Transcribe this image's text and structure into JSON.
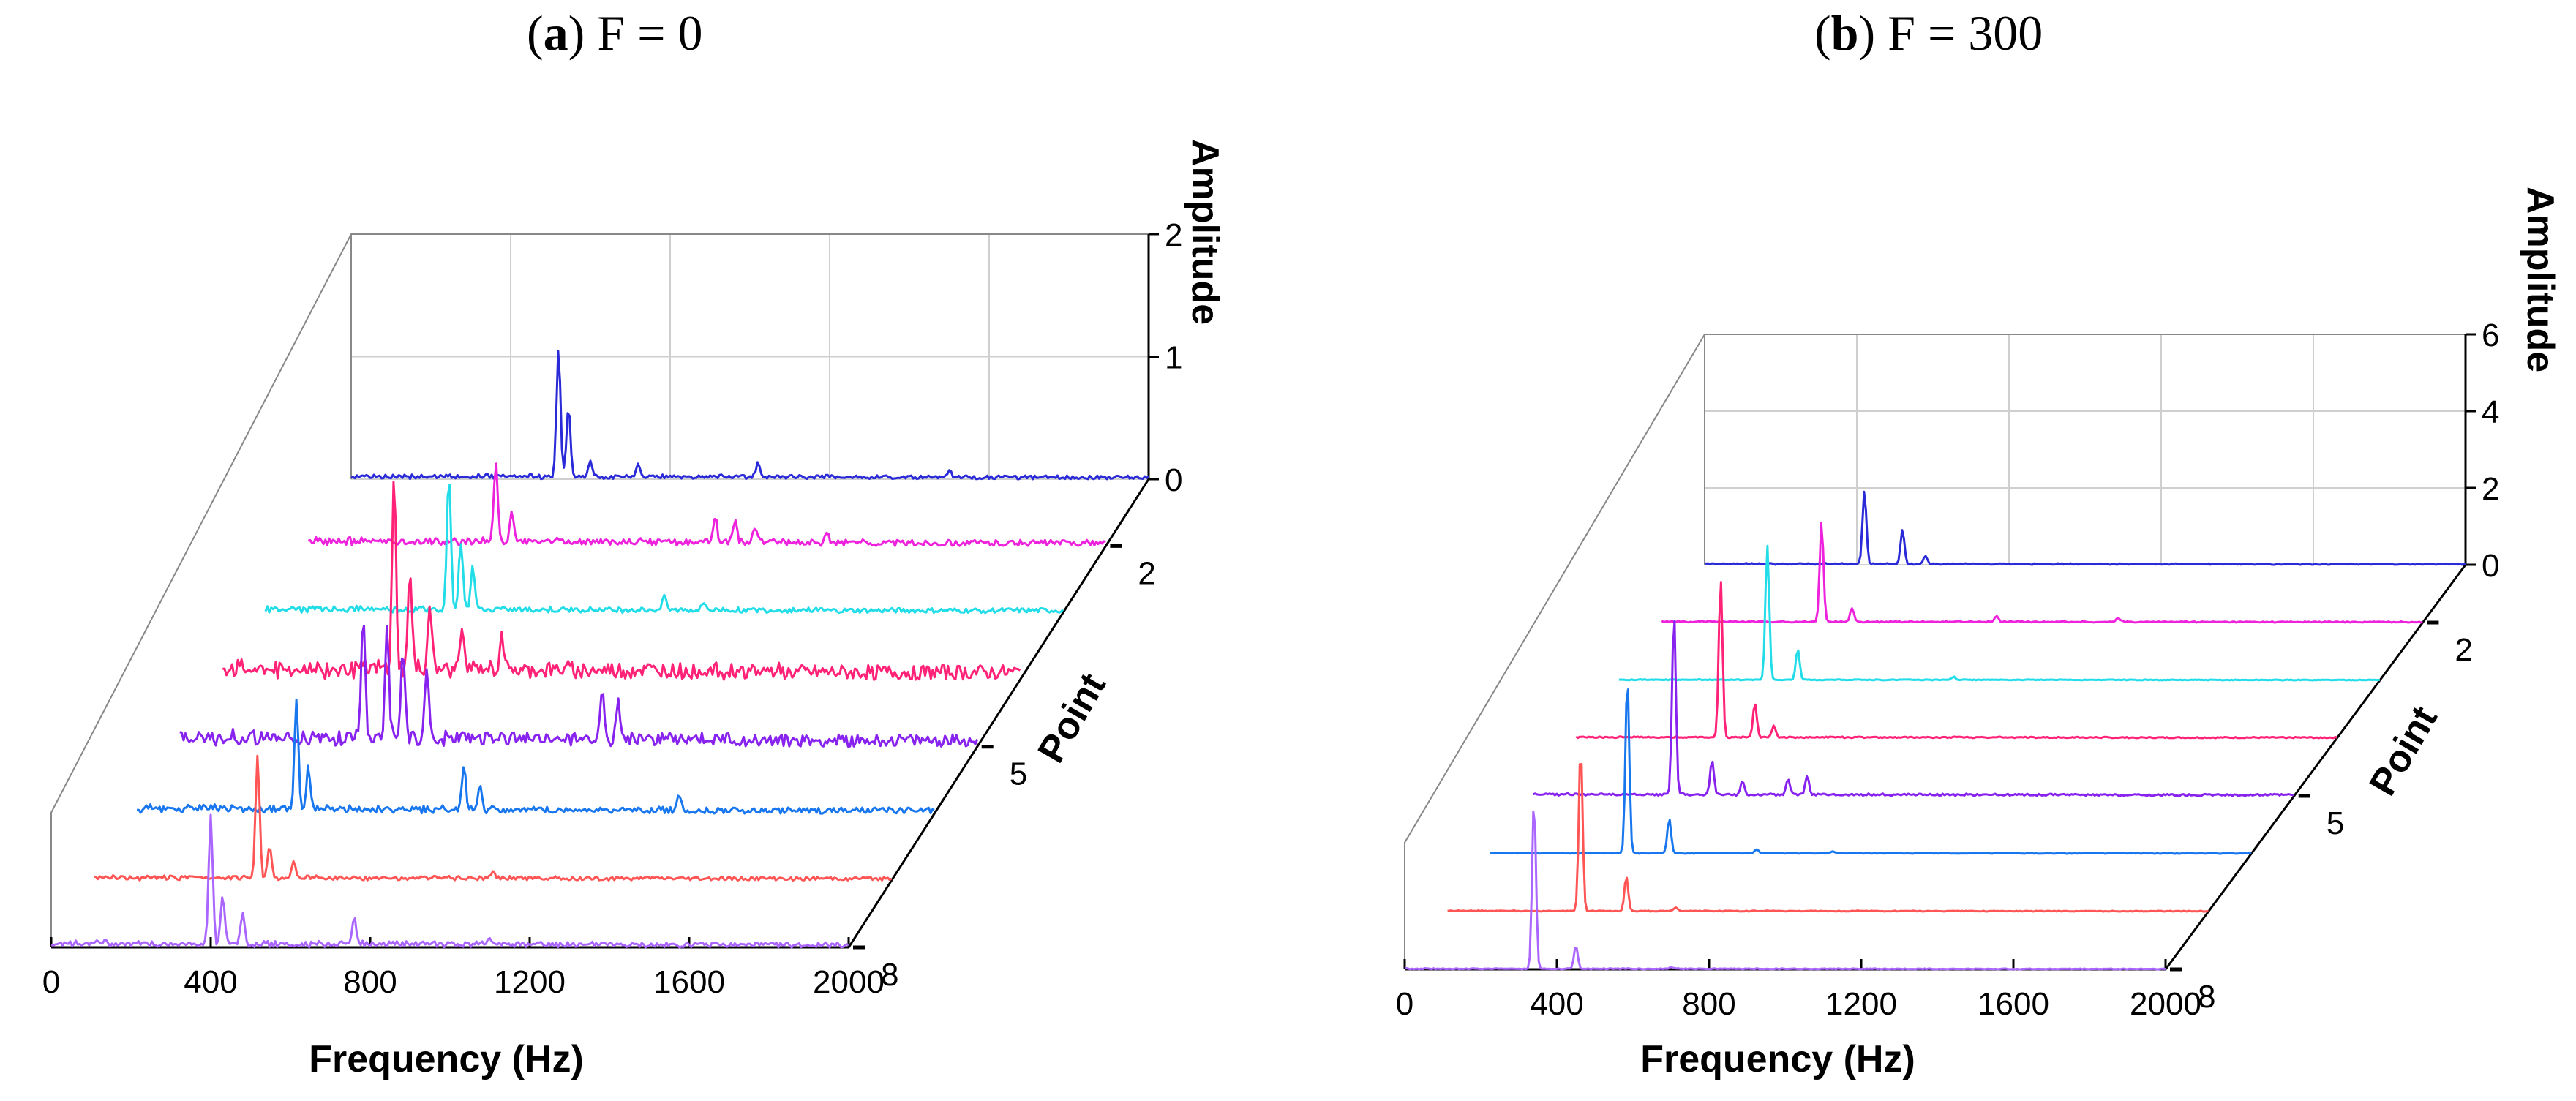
{
  "figure": {
    "panels": [
      {
        "label": "a",
        "title_rest": " F = 0"
      },
      {
        "label": "b",
        "title_rest": " F = 300"
      }
    ]
  },
  "chart_data": [
    {
      "type": "line",
      "view": "3d-waterfall",
      "title": "(a) F = 0",
      "xlabel": "Frequency (Hz)",
      "ylabel": "Point",
      "zlabel": "Amplitude",
      "xlim": [
        0,
        2000
      ],
      "zlim": [
        0,
        2
      ],
      "x_ticks": [
        0,
        400,
        800,
        1200,
        1600,
        2000
      ],
      "z_ticks": [
        0,
        1,
        2
      ],
      "point_ticks": [
        2,
        5,
        8
      ],
      "series": [
        {
          "point": 1,
          "color": "#2a2ad8",
          "noise": 0.03,
          "peaks": [
            [
              520,
              1.05
            ],
            [
              545,
              0.55
            ],
            [
              600,
              0.12
            ],
            [
              720,
              0.09
            ],
            [
              1020,
              0.12
            ],
            [
              1500,
              0.06
            ]
          ]
        },
        {
          "point": 2,
          "color": "#ee22dd",
          "noise": 0.05,
          "peaks": [
            [
              470,
              0.65
            ],
            [
              510,
              0.25
            ],
            [
              1020,
              0.22
            ],
            [
              1070,
              0.18
            ],
            [
              1120,
              0.12
            ],
            [
              1300,
              0.07
            ]
          ]
        },
        {
          "point": 3,
          "color": "#22dde8",
          "noise": 0.04,
          "peaks": [
            [
              460,
              1.1
            ],
            [
              490,
              0.55
            ],
            [
              520,
              0.35
            ],
            [
              1000,
              0.14
            ],
            [
              1100,
              0.06
            ]
          ]
        },
        {
          "point": 4,
          "color": "#ff2277",
          "noise": 0.12,
          "peaks": [
            [
              430,
              1.55
            ],
            [
              470,
              0.8
            ],
            [
              520,
              0.55
            ],
            [
              600,
              0.4
            ],
            [
              700,
              0.3
            ]
          ]
        },
        {
          "point": 5,
          "color": "#8822ee",
          "noise": 0.1,
          "peaks": [
            [
              460,
              1.05
            ],
            [
              520,
              0.9
            ],
            [
              560,
              0.7
            ],
            [
              620,
              0.6
            ],
            [
              1060,
              0.45
            ],
            [
              1100,
              0.3
            ]
          ]
        },
        {
          "point": 6,
          "color": "#1877ee",
          "noise": 0.05,
          "peaks": [
            [
              400,
              0.9
            ],
            [
              430,
              0.35
            ],
            [
              820,
              0.35
            ],
            [
              860,
              0.2
            ],
            [
              1360,
              0.12
            ]
          ]
        },
        {
          "point": 7,
          "color": "#ff5555",
          "noise": 0.03,
          "peaks": [
            [
              410,
              1.0
            ],
            [
              440,
              0.25
            ],
            [
              500,
              0.12
            ],
            [
              1000,
              0.05
            ]
          ]
        },
        {
          "point": 8,
          "color": "#aa66ff",
          "noise": 0.04,
          "peaks": [
            [
              400,
              1.05
            ],
            [
              430,
              0.4
            ],
            [
              480,
              0.25
            ],
            [
              760,
              0.22
            ],
            [
              1100,
              0.07
            ]
          ]
        }
      ]
    },
    {
      "type": "line",
      "view": "3d-waterfall",
      "title": "(b) F = 300",
      "xlabel": "Frequency (Hz)",
      "ylabel": "Point",
      "zlabel": "Amplitude",
      "xlim": [
        0,
        2000
      ],
      "zlim": [
        0,
        6
      ],
      "x_ticks": [
        0,
        400,
        800,
        1200,
        1600,
        2000
      ],
      "z_ticks": [
        0,
        2,
        4,
        6
      ],
      "point_ticks": [
        2,
        5,
        8
      ],
      "series": [
        {
          "point": 1,
          "color": "#2a2ad8",
          "noise": 0.03,
          "peaks": [
            [
              420,
              1.9
            ],
            [
              520,
              0.9
            ],
            [
              580,
              0.2
            ]
          ]
        },
        {
          "point": 2,
          "color": "#ee22dd",
          "noise": 0.03,
          "peaks": [
            [
              420,
              2.6
            ],
            [
              500,
              0.35
            ],
            [
              880,
              0.15
            ],
            [
              1200,
              0.1
            ]
          ]
        },
        {
          "point": 3,
          "color": "#22dde8",
          "noise": 0.02,
          "peaks": [
            [
              390,
              3.5
            ],
            [
              470,
              0.8
            ],
            [
              880,
              0.08
            ]
          ]
        },
        {
          "point": 4,
          "color": "#ff2277",
          "noise": 0.03,
          "peaks": [
            [
              380,
              4.1
            ],
            [
              470,
              0.9
            ],
            [
              520,
              0.3
            ]
          ]
        },
        {
          "point": 5,
          "color": "#8822ee",
          "noise": 0.05,
          "peaks": [
            [
              370,
              4.7
            ],
            [
              470,
              0.9
            ],
            [
              550,
              0.35
            ],
            [
              670,
              0.4
            ],
            [
              720,
              0.5
            ]
          ]
        },
        {
          "point": 6,
          "color": "#1877ee",
          "noise": 0.02,
          "peaks": [
            [
              360,
              4.6
            ],
            [
              470,
              0.9
            ],
            [
              700,
              0.1
            ],
            [
              900,
              0.06
            ]
          ]
        },
        {
          "point": 7,
          "color": "#ff5555",
          "noise": 0.02,
          "peaks": [
            [
              350,
              4.3
            ],
            [
              470,
              0.9
            ],
            [
              600,
              0.1
            ]
          ]
        },
        {
          "point": 8,
          "color": "#aa66ff",
          "noise": 0.02,
          "peaks": [
            [
              340,
              4.4
            ],
            [
              450,
              0.6
            ],
            [
              700,
              0.05
            ]
          ]
        }
      ]
    }
  ]
}
